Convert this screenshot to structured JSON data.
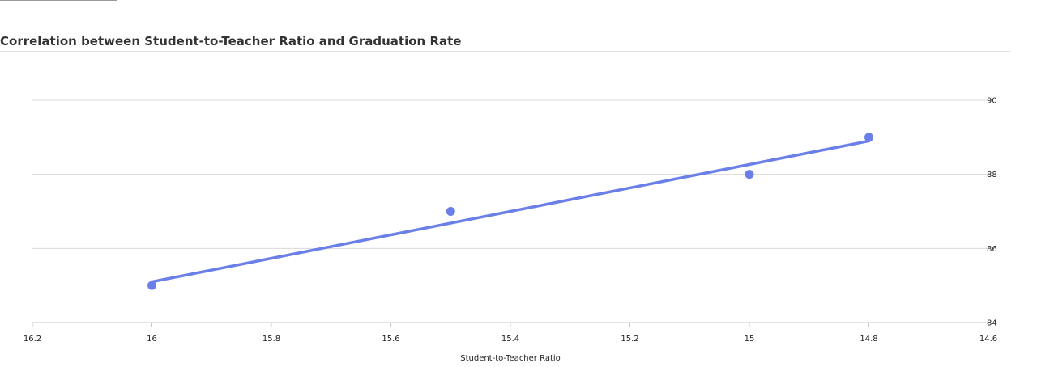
{
  "chart_data": {
    "type": "scatter",
    "title": "Correlation between Student-to-Teacher Ratio and Graduation Rate",
    "xlabel": "Student-to-Teacher Ratio",
    "ylabel": "",
    "x_reversed": true,
    "xlim": [
      16.2,
      14.6
    ],
    "ylim": [
      84,
      90
    ],
    "x_ticks": [
      16.2,
      16,
      15.8,
      15.6,
      15.4,
      15.2,
      15,
      14.8,
      14.6
    ],
    "x_tick_labels": [
      "16.2",
      "16",
      "15.8",
      "15.6",
      "15.4",
      "15.2",
      "15",
      "14.8",
      "14.6"
    ],
    "y_ticks": [
      84,
      86,
      88,
      90
    ],
    "y_tick_labels": [
      "84",
      "86",
      "88",
      "90"
    ],
    "y_axis_position": "right",
    "grid": "horizontal",
    "points": [
      {
        "x": 16.0,
        "y": 85
      },
      {
        "x": 15.5,
        "y": 87
      },
      {
        "x": 15.0,
        "y": 88
      },
      {
        "x": 14.8,
        "y": 89
      }
    ],
    "trendline": {
      "x": [
        16.0,
        14.8
      ],
      "y": [
        85.1,
        88.9
      ]
    },
    "colors": {
      "series": "#6a7fe8",
      "grid": "#d9d9d9",
      "axis": "#c8c8c8"
    }
  }
}
